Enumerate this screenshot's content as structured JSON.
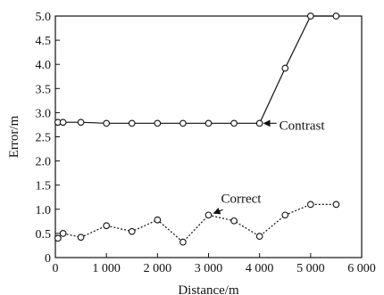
{
  "chart_data": {
    "type": "line",
    "xlabel": "Distance/m",
    "ylabel": "Error/m",
    "xlim": [
      0,
      6000
    ],
    "ylim": [
      0,
      5.0
    ],
    "x_ticks": [
      0,
      1000,
      2000,
      3000,
      4000,
      5000,
      6000
    ],
    "x_tick_labels": [
      "0",
      "1 000",
      "2 000",
      "3 000",
      "4 000",
      "5 000",
      "6 000"
    ],
    "y_ticks": [
      0,
      0.5,
      1.0,
      1.5,
      2.0,
      2.5,
      3.0,
      3.5,
      4.0,
      4.5,
      5.0
    ],
    "y_tick_labels": [
      "0",
      "0.5",
      "1.0",
      "1.5",
      "2.0",
      "2.5",
      "3.0",
      "3.5",
      "4.0",
      "4.5",
      "5.0"
    ],
    "grid": false,
    "series": [
      {
        "name": "Contrast",
        "line_style": "solid",
        "marker": "circle-open",
        "x": [
          50,
          150,
          500,
          1000,
          1500,
          2000,
          2500,
          3000,
          3500,
          4000,
          4500,
          5000,
          5500
        ],
        "y": [
          2.8,
          2.8,
          2.8,
          2.78,
          2.78,
          2.78,
          2.78,
          2.78,
          2.78,
          2.78,
          3.92,
          5.0,
          5.0
        ]
      },
      {
        "name": "Correct",
        "line_style": "dotted",
        "marker": "circle-open",
        "x": [
          50,
          150,
          500,
          1000,
          1500,
          2000,
          2500,
          3000,
          3500,
          4000,
          4500,
          5000,
          5500
        ],
        "y": [
          0.4,
          0.5,
          0.42,
          0.66,
          0.54,
          0.78,
          0.32,
          0.88,
          0.76,
          0.44,
          0.88,
          1.1,
          1.1
        ]
      }
    ],
    "annotations": [
      {
        "text": "Contrast",
        "series": "Contrast",
        "arrow_to_x": 4000,
        "arrow_to_y": 2.78
      },
      {
        "text": "Correct",
        "series": "Correct",
        "arrow_to_x": 3000,
        "arrow_to_y": 0.88
      }
    ]
  }
}
